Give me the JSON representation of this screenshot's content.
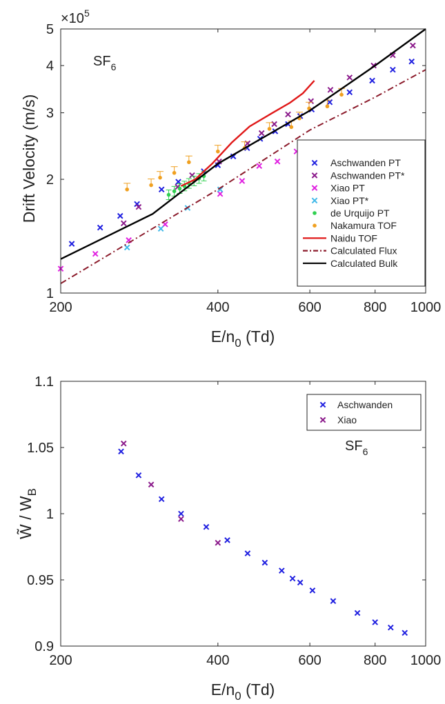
{
  "chart_data": [
    {
      "type": "scatter",
      "annotation": {
        "base": "SF",
        "sub": "6"
      },
      "ylabel": "Drift Velocity (m/s)",
      "xlabel": {
        "base": "E/n",
        "sub": "0",
        "rest": " (Td)"
      },
      "multiplier": {
        "base": "×10",
        "exp": "5"
      },
      "xscale": "log",
      "yscale": "log",
      "xlim": [
        200,
        1000
      ],
      "ylim": [
        1,
        5
      ],
      "xticks": [
        200,
        400,
        600,
        800,
        1000
      ],
      "xticklabels": [
        "200",
        "400",
        "600",
        "800",
        "1000"
      ],
      "yticks": [
        1,
        2,
        3,
        4,
        5
      ],
      "yticklabels": [
        "1",
        "2",
        "3",
        "4",
        "5"
      ],
      "legend_position": "right",
      "series": [
        {
          "name": "Aschwanden PT",
          "marker": "x",
          "color": "#1f1fe0",
          "points": [
            [
              210,
              1.35
            ],
            [
              238,
              1.49
            ],
            [
              260,
              1.6
            ],
            [
              280,
              1.72
            ],
            [
              312,
              1.88
            ],
            [
              336,
              1.97
            ],
            [
              376,
              2.1
            ],
            [
              400,
              2.18
            ],
            [
              428,
              2.3
            ],
            [
              455,
              2.42
            ],
            [
              482,
              2.56
            ],
            [
              515,
              2.68
            ],
            [
              545,
              2.8
            ],
            [
              575,
              2.94
            ],
            [
              605,
              3.06
            ],
            [
              655,
              3.2
            ],
            [
              715,
              3.4
            ],
            [
              790,
              3.65
            ],
            [
              865,
              3.9
            ],
            [
              940,
              4.1
            ]
          ]
        },
        {
          "name": "Aschwanden PT*",
          "marker": "x",
          "color": "#8b1a8b",
          "points": [
            [
              264,
              1.53
            ],
            [
              282,
              1.69
            ],
            [
              335,
              1.91
            ],
            [
              357,
              2.05
            ],
            [
              402,
              2.23
            ],
            [
              456,
              2.49
            ],
            [
              485,
              2.65
            ],
            [
              513,
              2.8
            ],
            [
              545,
              2.97
            ],
            [
              603,
              3.22
            ],
            [
              657,
              3.45
            ],
            [
              715,
              3.72
            ],
            [
              795,
              4.0
            ],
            [
              865,
              4.26
            ],
            [
              945,
              4.52
            ]
          ]
        },
        {
          "name": "Xiao PT",
          "marker": "x",
          "color": "#e020e0",
          "points": [
            [
              200,
              1.16
            ],
            [
              233,
              1.27
            ],
            [
              270,
              1.38
            ],
            [
              317,
              1.52
            ],
            [
              404,
              1.83
            ],
            [
              445,
              1.98
            ],
            [
              480,
              2.17
            ],
            [
              520,
              2.23
            ],
            [
              566,
              2.37
            ]
          ]
        },
        {
          "name": "Xiao PT*",
          "marker": "x",
          "color": "#40b8e8",
          "points": [
            [
              268,
              1.32
            ],
            [
              311,
              1.48
            ],
            [
              350,
              1.68
            ],
            [
              404,
              1.88
            ]
          ]
        },
        {
          "name": "de Urquijo PT",
          "marker": "dot",
          "color": "#30d050",
          "points": [
            [
              322,
              1.82
            ],
            [
              330,
              1.86
            ],
            [
              338,
              1.89
            ],
            [
              345,
              1.92
            ],
            [
              352,
              1.95
            ],
            [
              360,
              1.98
            ],
            [
              368,
              2.01
            ],
            [
              376,
              2.04
            ]
          ]
        },
        {
          "name": "Nakamura TOF",
          "marker": "dot-errorbar",
          "color": "#f0a020",
          "points": [
            [
              268,
              1.88
            ],
            [
              298,
              1.93
            ],
            [
              310,
              2.02
            ],
            [
              330,
              2.08
            ],
            [
              352,
              2.22
            ],
            [
              400,
              2.37
            ],
            [
              450,
              2.42
            ],
            [
              502,
              2.72
            ],
            [
              553,
              2.75
            ],
            [
              573,
              2.9
            ],
            [
              598,
              3.08
            ],
            [
              648,
              3.12
            ],
            [
              690,
              3.35
            ]
          ]
        },
        {
          "name": "Naidu TOF",
          "marker": "line",
          "color": "#e01818",
          "points": [
            [
              340,
              1.92
            ],
            [
              362,
              2.0
            ],
            [
              390,
              2.2
            ],
            [
              425,
              2.5
            ],
            [
              460,
              2.76
            ],
            [
              505,
              2.98
            ],
            [
              550,
              3.19
            ],
            [
              582,
              3.38
            ],
            [
              612,
              3.65
            ]
          ]
        },
        {
          "name": "Calculated Flux",
          "marker": "dashdot",
          "color": "#8b1a2a",
          "points": [
            [
              200,
              1.06
            ],
            [
              400,
              1.88
            ],
            [
              600,
              2.7
            ],
            [
              800,
              3.3
            ],
            [
              1000,
              3.9
            ]
          ]
        },
        {
          "name": "Calculated Bulk",
          "marker": "line",
          "color": "#000000",
          "points": [
            [
              200,
              1.23
            ],
            [
              300,
              1.62
            ],
            [
              400,
              2.2
            ],
            [
              600,
              3.04
            ],
            [
              800,
              4.0
            ],
            [
              1000,
              5.0
            ]
          ]
        }
      ]
    },
    {
      "type": "scatter",
      "annotation": {
        "base": "SF",
        "sub": "6"
      },
      "ylabel": {
        "base": "W̃ / W",
        "sub": "B"
      },
      "xlabel": {
        "base": "E/n",
        "sub": "0",
        "rest": " (Td)"
      },
      "xscale": "log",
      "yscale": "linear",
      "xlim": [
        200,
        1000
      ],
      "ylim": [
        0.9,
        1.1
      ],
      "xticks": [
        200,
        400,
        600,
        800,
        1000
      ],
      "xticklabels": [
        "200",
        "400",
        "600",
        "800",
        "1000"
      ],
      "yticks": [
        0.9,
        0.95,
        1.0,
        1.05,
        1.1
      ],
      "yticklabels": [
        "0.9",
        "0.95",
        "1",
        "1.05",
        "1.1"
      ],
      "legend_position": "top-right",
      "series": [
        {
          "name": "Aschwanden",
          "marker": "x",
          "color": "#1f1fe0",
          "points": [
            [
              261,
              1.047
            ],
            [
              282,
              1.029
            ],
            [
              312,
              1.011
            ],
            [
              340,
              1.0
            ],
            [
              380,
              0.99
            ],
            [
              417,
              0.98
            ],
            [
              456,
              0.97
            ],
            [
              492,
              0.963
            ],
            [
              530,
              0.957
            ],
            [
              556,
              0.951
            ],
            [
              575,
              0.948
            ],
            [
              607,
              0.942
            ],
            [
              665,
              0.934
            ],
            [
              740,
              0.925
            ],
            [
              800,
              0.918
            ],
            [
              857,
              0.914
            ],
            [
              912,
              0.91
            ]
          ]
        },
        {
          "name": "Xiao",
          "marker": "x",
          "color": "#8b1a8b",
          "points": [
            [
              264,
              1.053
            ],
            [
              298,
              1.022
            ],
            [
              340,
              0.996
            ],
            [
              400,
              0.978
            ]
          ]
        }
      ]
    }
  ]
}
